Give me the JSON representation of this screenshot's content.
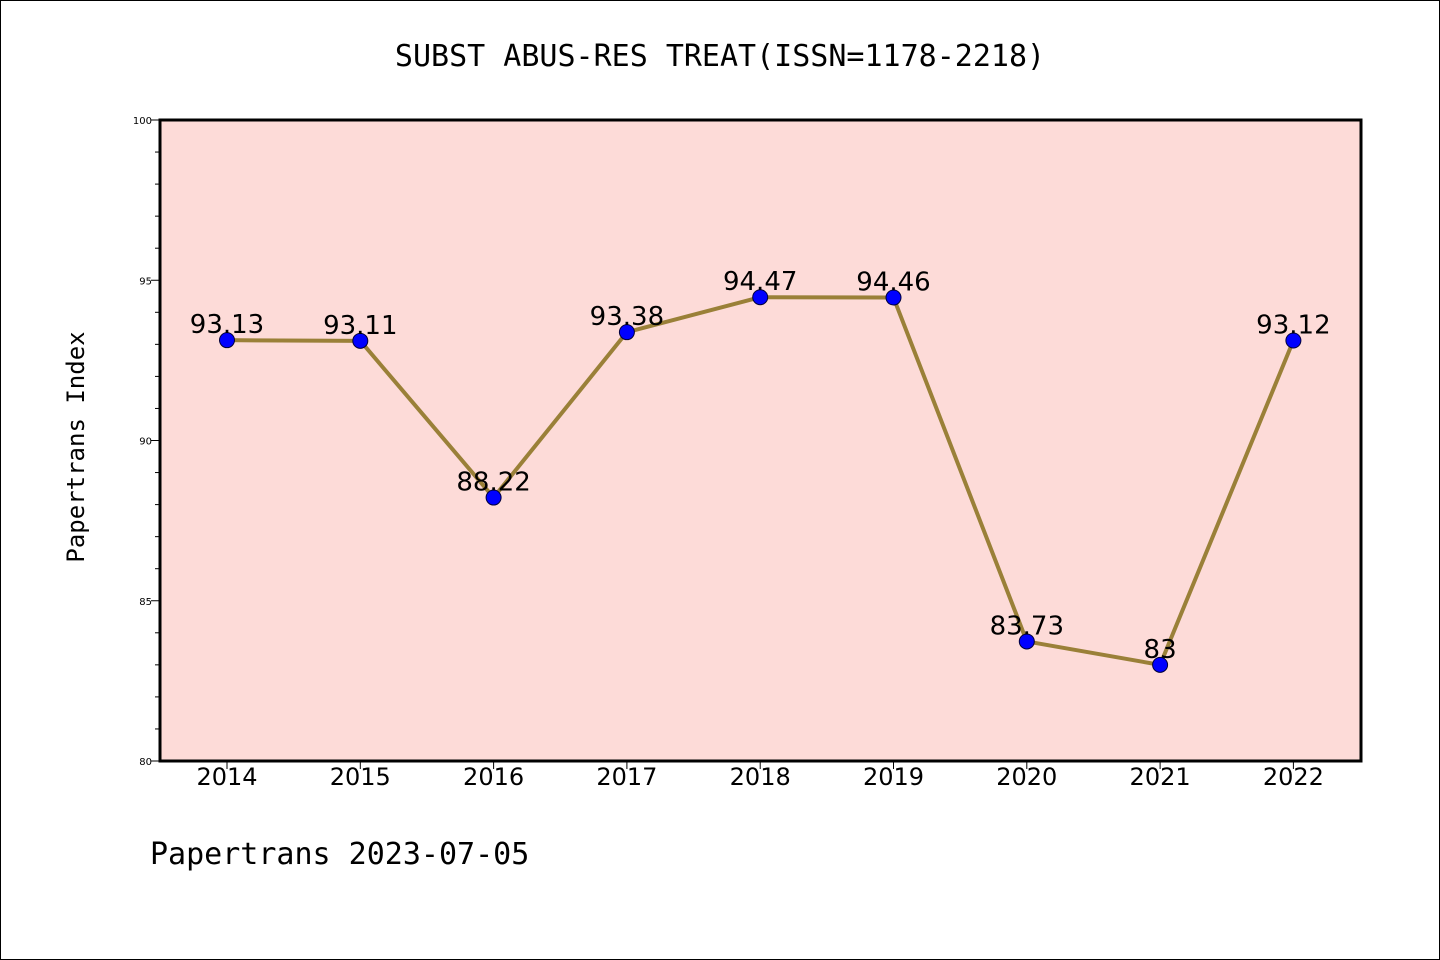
{
  "chart_data": {
    "type": "line",
    "title": "SUBST ABUS-RES TREAT(ISSN=1178-2218)",
    "xlabel": "",
    "ylabel": "Papertrans Index",
    "categories": [
      "2014",
      "2015",
      "2016",
      "2017",
      "2018",
      "2019",
      "2020",
      "2021",
      "2022"
    ],
    "values": [
      93.13,
      93.11,
      88.22,
      93.38,
      94.47,
      94.46,
      83.73,
      83,
      93.12
    ],
    "data_labels": [
      "93.13",
      "93.11",
      "88.22",
      "93.38",
      "94.47",
      "94.46",
      "83.73",
      "83",
      "93.12"
    ],
    "ylim": [
      80,
      100
    ],
    "yticks": [
      "80",
      "85",
      "90",
      "95",
      "100"
    ],
    "grid": false,
    "footer": "Papertrans 2023-07-05",
    "colors": {
      "plot_background": "#fddbd8",
      "line": "#9a8038",
      "marker": "#0000ff",
      "axis": "#000000"
    }
  }
}
